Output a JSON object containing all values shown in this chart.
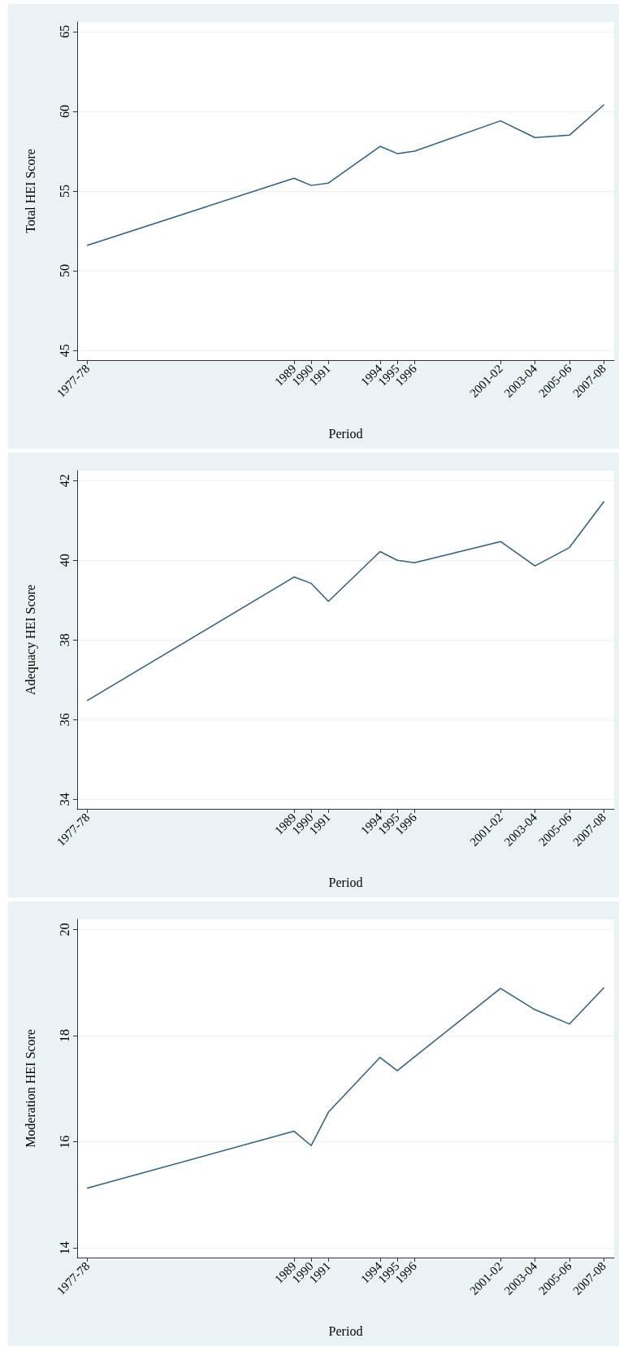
{
  "chart_data": [
    {
      "type": "line",
      "xlabel": "Period",
      "ylabel": "Total HEI Score",
      "x": [
        1977,
        1989,
        1990,
        1991,
        1994,
        1995,
        1996,
        2001,
        2003,
        2005,
        2007
      ],
      "series": [
        {
          "color": "#2e5f7f",
          "values": [
            51.6,
            55.8,
            55.35,
            55.5,
            57.8,
            57.35,
            57.5,
            59.4,
            58.35,
            58.5,
            60.4
          ]
        }
      ],
      "xlim": [
        1976.4,
        2007.6
      ],
      "xticks": [
        {
          "value": 1977,
          "label": "1977-78"
        },
        1989,
        1990,
        1991,
        1994,
        1995,
        1996,
        {
          "value": 2001,
          "label": "2001-02"
        },
        {
          "value": 2003,
          "label": "2003-04"
        },
        {
          "value": 2005,
          "label": "2005-06"
        },
        {
          "value": 2007,
          "label": "2007-08"
        }
      ],
      "ylim": [
        44.4,
        65.6
      ],
      "yticks": [
        45,
        50,
        55,
        60,
        65
      ],
      "grid": "y",
      "marker": "none",
      "line_style": "solid"
    },
    {
      "type": "line",
      "xlabel": "Period",
      "ylabel": "Adequacy HEI Score",
      "x": [
        1977,
        1989,
        1990,
        1991,
        1994,
        1995,
        1996,
        2001,
        2003,
        2005,
        2007
      ],
      "series": [
        {
          "color": "#2e5f7f",
          "values": [
            36.48,
            39.58,
            39.42,
            38.97,
            40.22,
            40.0,
            39.94,
            40.47,
            39.86,
            40.32,
            41.47
          ]
        }
      ],
      "xlim": [
        1976.4,
        2007.6
      ],
      "xticks": [
        {
          "value": 1977,
          "label": "1977-78"
        },
        1989,
        1990,
        1991,
        1994,
        1995,
        1996,
        {
          "value": 2001,
          "label": "2001-02"
        },
        {
          "value": 2003,
          "label": "2003-04"
        },
        {
          "value": 2005,
          "label": "2005-06"
        },
        {
          "value": 2007,
          "label": "2007-08"
        }
      ],
      "ylim": [
        33.76,
        42.25
      ],
      "yticks": [
        34,
        36,
        38,
        40,
        42
      ],
      "grid": "y",
      "marker": "none",
      "line_style": "solid"
    },
    {
      "type": "line",
      "xlabel": "Period",
      "ylabel": "Moderation HEI Score",
      "x": [
        1977,
        1989,
        1990,
        1991,
        1994,
        1995,
        1996,
        2001,
        2003,
        2005,
        2007
      ],
      "series": [
        {
          "color": "#2e5f7f",
          "values": [
            15.13,
            16.2,
            15.93,
            16.56,
            17.59,
            17.34,
            17.6,
            18.89,
            18.49,
            18.22,
            18.9
          ]
        }
      ],
      "xlim": [
        1976.4,
        2007.6
      ],
      "xticks": [
        {
          "value": 1977,
          "label": "1977-78"
        },
        1989,
        1990,
        1991,
        1994,
        1995,
        1996,
        {
          "value": 2001,
          "label": "2001-02"
        },
        {
          "value": 2003,
          "label": "2003-04"
        },
        {
          "value": 2005,
          "label": "2005-06"
        },
        {
          "value": 2007,
          "label": "2007-08"
        }
      ],
      "ylim": [
        13.82,
        20.19
      ],
      "yticks": [
        14,
        16,
        18,
        20
      ],
      "grid": "y",
      "marker": "none",
      "line_style": "solid"
    }
  ]
}
